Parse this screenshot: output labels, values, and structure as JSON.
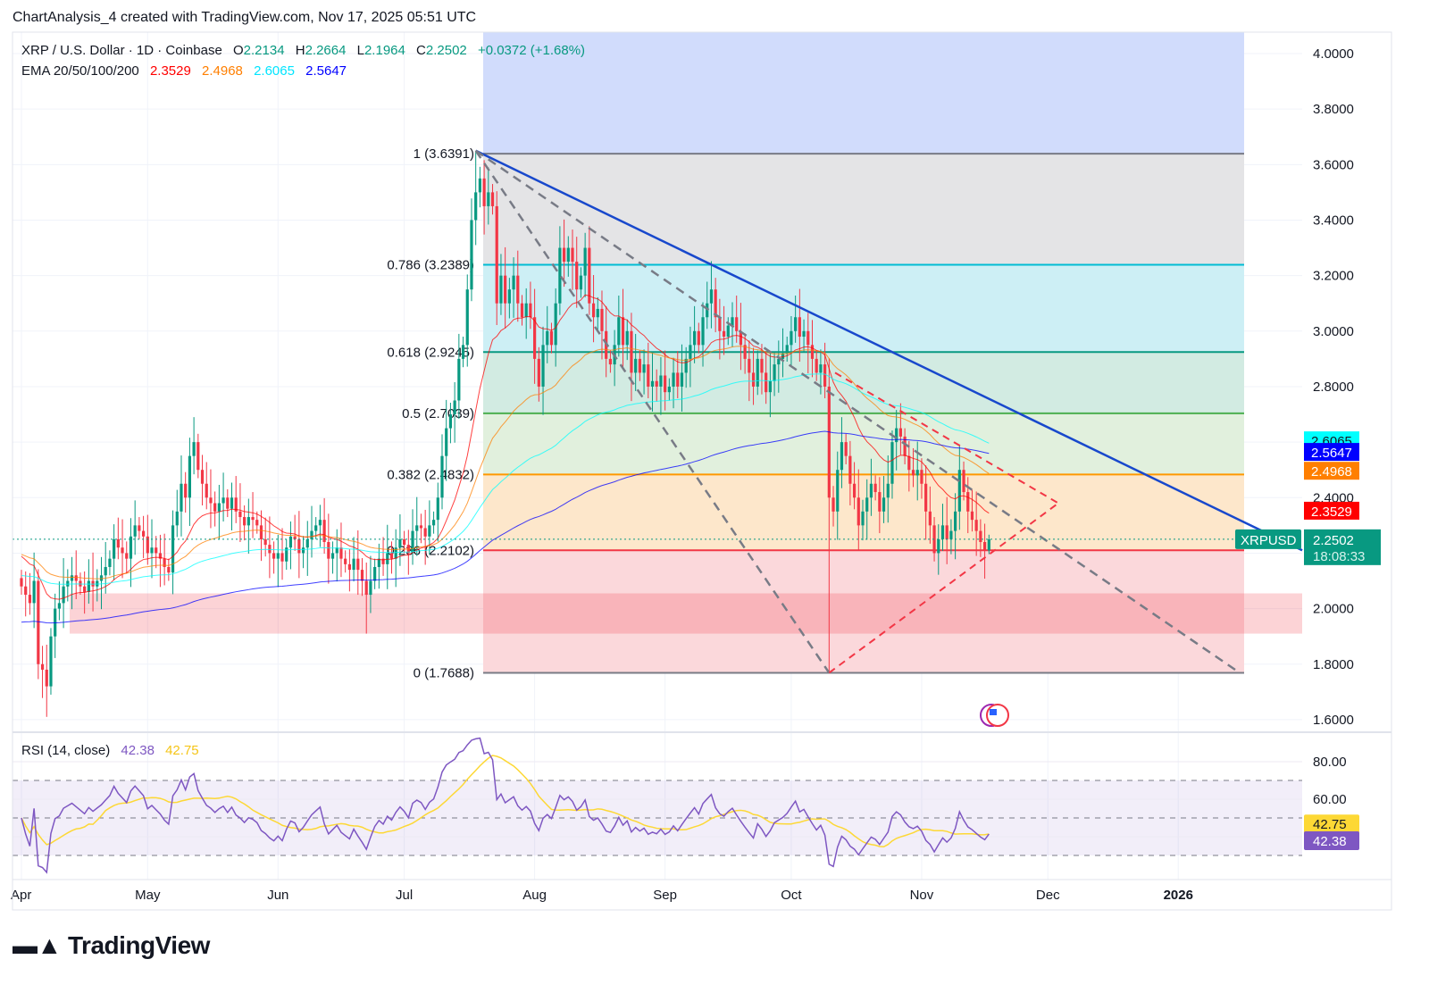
{
  "header": {
    "credit": "ChartAnalysis_4 created with TradingView.com, Nov 17, 2025 05:51 UTC"
  },
  "legend": {
    "symbol": "XRP / U.S. Dollar · 1D · Coinbase",
    "o_label": "O",
    "o": "2.2134",
    "h_label": "H",
    "h": "2.2664",
    "l_label": "L",
    "l": "2.1964",
    "c_label": "C",
    "c": "2.2502",
    "change": "+0.0372 (+1.68%)",
    "ema_label": "EMA 20/50/100/200",
    "ema20": "2.3529",
    "ema50": "2.4968",
    "ema100": "2.6065",
    "ema200": "2.5647"
  },
  "rsi_legend": {
    "label": "RSI (14, close)",
    "rsi": "42.38",
    "ma": "42.75"
  },
  "logo": "TradingView",
  "colors": {
    "up": "#089981",
    "down": "#f23645",
    "ema20": "#ff0000",
    "ema50": "#ff7f00",
    "ema100": "#00ffff",
    "ema200": "#0000ff",
    "rsi": "#7e57c2",
    "rsi_ma": "#fdd835",
    "trendline": "#1848cc"
  },
  "chart_data": {
    "type": "candlestick",
    "start_date": "2025-04-01",
    "closes": [
      2.08,
      2.05,
      2.02,
      2.1,
      1.8,
      1.78,
      1.72,
      1.9,
      2.0,
      2.02,
      2.08,
      2.1,
      2.12,
      2.1,
      2.08,
      2.06,
      2.1,
      2.08,
      2.1,
      2.12,
      2.15,
      2.18,
      2.25,
      2.22,
      2.2,
      2.18,
      2.26,
      2.3,
      2.28,
      2.26,
      2.2,
      2.22,
      2.2,
      2.18,
      2.15,
      2.13,
      2.3,
      2.35,
      2.45,
      2.4,
      2.55,
      2.6,
      2.5,
      2.45,
      2.4,
      2.38,
      2.35,
      2.38,
      2.4,
      2.36,
      2.4,
      2.35,
      2.33,
      2.3,
      2.33,
      2.32,
      2.3,
      2.25,
      2.23,
      2.2,
      2.18,
      2.2,
      2.17,
      2.22,
      2.26,
      2.25,
      2.2,
      2.22,
      2.25,
      2.28,
      2.3,
      2.32,
      2.24,
      2.18,
      2.2,
      2.22,
      2.18,
      2.16,
      2.14,
      2.18,
      2.14,
      2.1,
      2.05,
      2.1,
      2.15,
      2.18,
      2.16,
      2.2,
      2.18,
      2.22,
      2.25,
      2.23,
      2.2,
      2.28,
      2.3,
      2.29,
      2.26,
      2.3,
      2.32,
      2.4,
      2.55,
      2.65,
      2.7,
      2.75,
      2.9,
      2.95,
      3.15,
      3.4,
      3.5,
      3.55,
      3.45,
      3.5,
      3.45,
      3.1,
      3.2,
      3.1,
      3.15,
      3.2,
      3.1,
      3.05,
      3.1,
      3.05,
      2.9,
      2.8,
      2.95,
      3.0,
      2.95,
      3.1,
      3.3,
      3.25,
      3.3,
      3.25,
      3.15,
      3.2,
      3.3,
      3.1,
      3.05,
      3.08,
      3.0,
      2.9,
      2.88,
      2.95,
      3.05,
      2.95,
      3.0,
      2.85,
      2.9,
      2.85,
      2.88,
      2.8,
      2.82,
      2.8,
      2.84,
      2.78,
      2.8,
      2.85,
      2.8,
      2.85,
      2.9,
      2.95,
      3.0,
      2.95,
      3.05,
      3.1,
      3.15,
      3.05,
      3.0,
      2.98,
      3.02,
      3.05,
      3.0,
      2.95,
      2.9,
      2.85,
      2.8,
      2.9,
      2.85,
      2.78,
      2.82,
      2.88,
      2.9,
      2.92,
      2.95,
      3.0,
      3.05,
      2.98,
      3.0,
      2.95,
      2.9,
      2.85,
      2.88,
      2.8,
      2.4,
      2.35,
      2.5,
      2.6,
      2.55,
      2.45,
      2.4,
      2.3,
      2.35,
      2.4,
      2.45,
      2.42,
      2.35,
      2.4,
      2.45,
      2.6,
      2.65,
      2.62,
      2.55,
      2.5,
      2.48,
      2.5,
      2.45,
      2.35,
      2.3,
      2.2,
      2.25,
      2.3,
      2.25,
      2.28,
      2.35,
      2.5,
      2.42,
      2.35,
      2.32,
      2.28,
      2.24,
      2.21,
      2.25
    ],
    "extremes": [
      {
        "date": "2025-04-07",
        "low": 1.61
      },
      {
        "date": "2025-06-22",
        "low": 1.91
      },
      {
        "date": "2025-07-18",
        "high": 3.65
      },
      {
        "date": "2025-10-10",
        "low": 1.77
      }
    ],
    "fib_levels": [
      {
        "ratio": "1",
        "price": 3.6391,
        "label": "1 (3.6391)",
        "color": "#787b86",
        "fill": "#e4e4e6"
      },
      {
        "ratio": "0.786",
        "price": 3.2389,
        "label": "0.786 (3.2389)",
        "color": "#00bcd4",
        "fill": "#cdeff5"
      },
      {
        "ratio": "0.618",
        "price": 2.9245,
        "label": "0.618 (2.9245)",
        "color": "#089981",
        "fill": "#d2ebe2"
      },
      {
        "ratio": "0.5",
        "price": 2.7039,
        "label": "0.5 (2.7039)",
        "color": "#4caf50",
        "fill": "#e1f0dd"
      },
      {
        "ratio": "0.382",
        "price": 2.4832,
        "label": "0.382 (2.4832)",
        "color": "#ff9800",
        "fill": "#fde7cb"
      },
      {
        "ratio": "0.236",
        "price": 2.2102,
        "label": "0.236 (2.2102)",
        "color": "#f23645",
        "fill": "#fbd8db"
      },
      {
        "ratio": "0",
        "price": 1.7688,
        "label": "0 (1.7688)",
        "color": "#787b86",
        "fill": null
      }
    ],
    "support_zone": [
      1.91,
      2.055
    ],
    "price_axis": {
      "ticks": [
        "4.0000",
        "3.8000",
        "3.6000",
        "3.4000",
        "3.2000",
        "3.0000",
        "2.8000",
        "2.4000",
        "2.0000",
        "1.8000",
        "1.6000"
      ],
      "range": [
        1.55,
        4.08
      ]
    },
    "price_badges": [
      {
        "value": "2.6065",
        "bg": "#00ffff",
        "fg": "#131722"
      },
      {
        "value": "2.5647",
        "bg": "#0000ff",
        "fg": "#ffffff"
      },
      {
        "value": "2.4968",
        "bg": "#ff7f00",
        "fg": "#ffffff"
      },
      {
        "value": "2.3529",
        "bg": "#ff0000",
        "fg": "#ffffff"
      }
    ],
    "last_price": {
      "symbol": "XRPUSD",
      "value": "2.2502",
      "countdown": "18:08:33",
      "bg": "#089981"
    },
    "time_axis": [
      "Apr",
      "May",
      "Jun",
      "Jul",
      "Aug",
      "Sep",
      "Oct",
      "Nov",
      "Dec",
      "2026"
    ],
    "rsi_axis": {
      "ticks": [
        "80.00",
        "60.00"
      ],
      "upper_band": 70,
      "mid": 50,
      "lower_band": 30
    },
    "rsi_badges": [
      {
        "value": "42.75",
        "bg": "#fdd835",
        "fg": "#131722"
      },
      {
        "value": "42.38",
        "bg": "#7e57c2",
        "fg": "#ffffff"
      }
    ]
  }
}
